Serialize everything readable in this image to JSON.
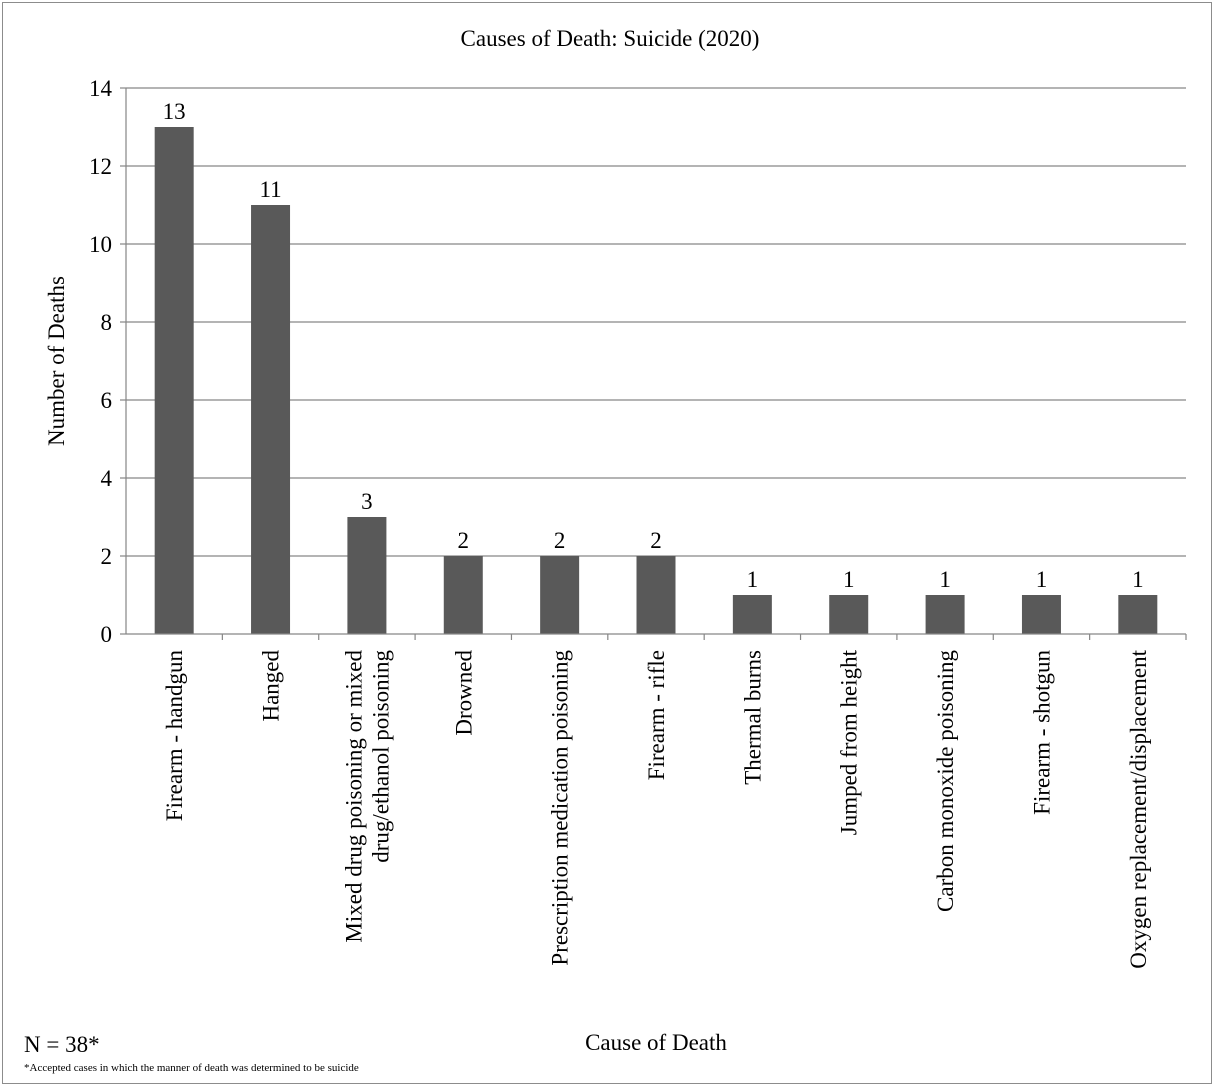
{
  "chart_data": {
    "type": "bar",
    "title": "Causes of Death: Suicide (2020)",
    "xlabel": "Cause of Death",
    "ylabel": "Number of Deaths",
    "ylim": [
      0,
      14
    ],
    "yticks": [
      0,
      2,
      4,
      6,
      8,
      10,
      12,
      14
    ],
    "grid": true,
    "bar_color": "#595959",
    "grid_color": "#868686",
    "categories": [
      [
        "Firearm - handgun"
      ],
      [
        "Hanged"
      ],
      [
        "Mixed drug poisoning or mixed",
        "drug/ethanol poisoning"
      ],
      [
        "Drowned"
      ],
      [
        "Prescription medication poisoning"
      ],
      [
        "Firearm - rifle"
      ],
      [
        "Thermal burns"
      ],
      [
        "Jumped from height"
      ],
      [
        "Carbon monoxide poisoning"
      ],
      [
        "Firearm - shotgun"
      ],
      [
        "Oxygen replacement/displacement"
      ]
    ],
    "values": [
      13,
      11,
      3,
      2,
      2,
      2,
      1,
      1,
      1,
      1,
      1
    ]
  },
  "footnote": {
    "n_label": "N = 38*",
    "note": "*Accepted cases in which the manner of death was determined to be suicide"
  }
}
